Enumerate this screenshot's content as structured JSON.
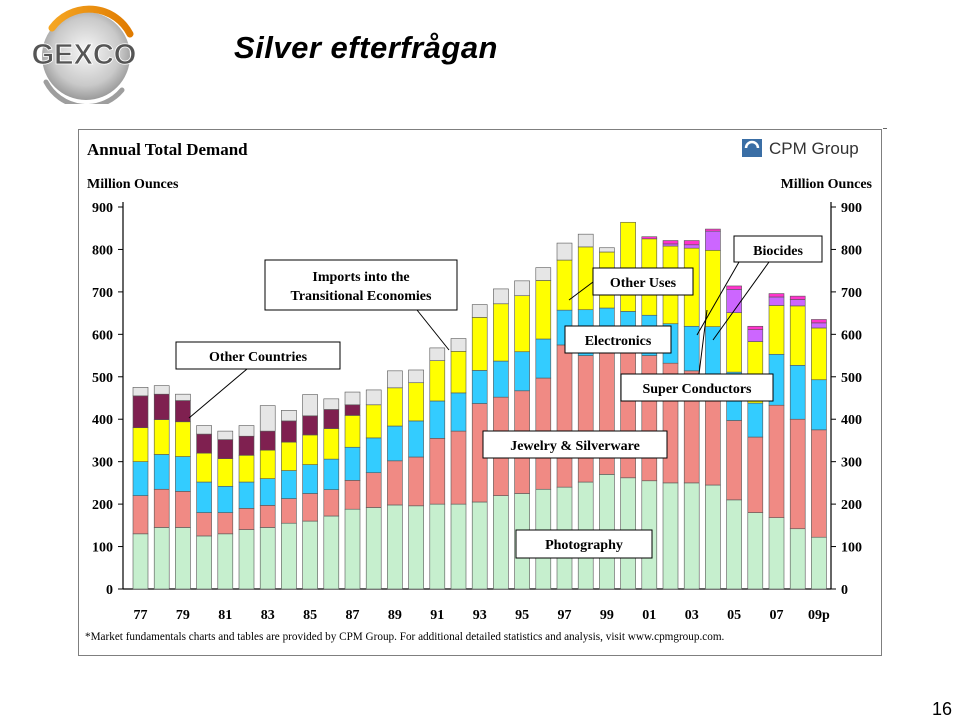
{
  "logo": {
    "text": "GEXCO"
  },
  "slide": {
    "title": "Silver efterfrågan",
    "page_number": "16"
  },
  "chart_data": {
    "type": "bar",
    "stacked": true,
    "title": "Annual Total Demand",
    "brand": "CPM Group",
    "ylabel_left": "Million Ounces",
    "ylabel_right": "Million Ounces",
    "ylim": [
      0,
      900
    ],
    "yticks": [
      "0",
      "100",
      "200",
      "300",
      "400",
      "500",
      "600",
      "700",
      "800",
      "900"
    ],
    "grid": false,
    "footnote": "*Market fundamentals charts and tables are provided by CPM Group. For additional detailed statistics and analysis, visit www.cpmgroup.com.",
    "categories": [
      "1977",
      "1978",
      "1979",
      "1980",
      "1981",
      "1982",
      "1983",
      "1984",
      "1985",
      "1986",
      "1987",
      "1988",
      "1989",
      "1990",
      "1991",
      "1992",
      "1993",
      "1994",
      "1995",
      "1996",
      "1997",
      "1998",
      "1999",
      "2000",
      "2001",
      "2002",
      "2003",
      "2004",
      "2005",
      "2006",
      "2007",
      "2008",
      "2009p"
    ],
    "xtick_labels": [
      "77",
      "79",
      "81",
      "83",
      "85",
      "87",
      "89",
      "91",
      "93",
      "95",
      "97",
      "99",
      "01",
      "03",
      "05",
      "07",
      "09p"
    ],
    "xtick_positions": [
      0,
      2,
      4,
      6,
      8,
      10,
      12,
      14,
      16,
      18,
      20,
      22,
      24,
      26,
      28,
      30,
      32
    ],
    "series": [
      {
        "name": "Photography",
        "color": "#c6efce",
        "values": [
          130,
          145,
          145,
          125,
          130,
          140,
          145,
          155,
          160,
          172,
          188,
          192,
          198,
          196,
          200,
          200,
          205,
          220,
          225,
          235,
          240,
          252,
          270,
          262,
          255,
          250,
          250,
          245,
          210,
          180,
          168,
          142,
          122
        ]
      },
      {
        "name": "Jewelry & Silverware",
        "color": "#f08a84",
        "values": [
          90,
          90,
          85,
          55,
          50,
          50,
          52,
          58,
          65,
          62,
          68,
          82,
          104,
          115,
          155,
          172,
          232,
          232,
          242,
          262,
          335,
          298,
          302,
          302,
          295,
          282,
          264,
          258,
          187,
          178,
          265,
          258,
          253
        ]
      },
      {
        "name": "Electronics",
        "color": "#33ccff",
        "values": [
          80,
          82,
          82,
          72,
          62,
          62,
          63,
          66,
          68,
          72,
          78,
          82,
          82,
          85,
          88,
          90,
          78,
          85,
          92,
          92,
          82,
          108,
          90,
          90,
          95,
          93,
          105,
          115,
          114,
          80,
          120,
          127,
          118
        ]
      },
      {
        "name": "Other Uses",
        "color": "#ffff00",
        "values": [
          80,
          82,
          82,
          68,
          65,
          63,
          67,
          67,
          70,
          72,
          75,
          78,
          90,
          90,
          95,
          98,
          125,
          135,
          132,
          138,
          118,
          148,
          132,
          210,
          180,
          183,
          184,
          180,
          140,
          145,
          115,
          140,
          122
        ]
      },
      {
        "name": "Super Conductors",
        "color": "#cc66ff",
        "values": [
          0,
          0,
          0,
          0,
          0,
          0,
          0,
          0,
          0,
          0,
          0,
          0,
          0,
          0,
          0,
          0,
          0,
          0,
          0,
          0,
          0,
          0,
          0,
          0,
          0,
          5,
          8,
          45,
          55,
          28,
          20,
          15,
          12
        ]
      },
      {
        "name": "Biocides",
        "color": "#ff33cc",
        "values": [
          0,
          0,
          0,
          0,
          0,
          0,
          0,
          0,
          0,
          0,
          0,
          0,
          0,
          0,
          0,
          0,
          0,
          0,
          0,
          0,
          0,
          0,
          0,
          0,
          5,
          8,
          10,
          5,
          8,
          8,
          8,
          8,
          8
        ]
      },
      {
        "name": "Other Countries",
        "color": "#7f2050",
        "values": [
          75,
          60,
          50,
          45,
          45,
          45,
          45,
          50,
          45,
          45,
          25,
          0,
          0,
          0,
          0,
          0,
          0,
          0,
          0,
          0,
          0,
          0,
          0,
          0,
          0,
          0,
          0,
          0,
          0,
          0,
          0,
          0,
          0
        ]
      },
      {
        "name": "Imports into the Transitional Economies",
        "color": "#e6e6e6",
        "values": [
          20,
          20,
          15,
          20,
          20,
          25,
          60,
          25,
          50,
          25,
          30,
          35,
          40,
          30,
          30,
          30,
          30,
          35,
          35,
          30,
          40,
          30,
          10,
          0,
          0,
          0,
          0,
          0,
          0,
          0,
          0,
          0,
          0
        ]
      }
    ],
    "annotations": [
      "Imports into the Transitional Economies",
      "Other Countries",
      "Other Uses",
      "Electronics",
      "Biocides",
      "Super Conductors",
      "Jewelry & Silverware",
      "Photography"
    ]
  }
}
